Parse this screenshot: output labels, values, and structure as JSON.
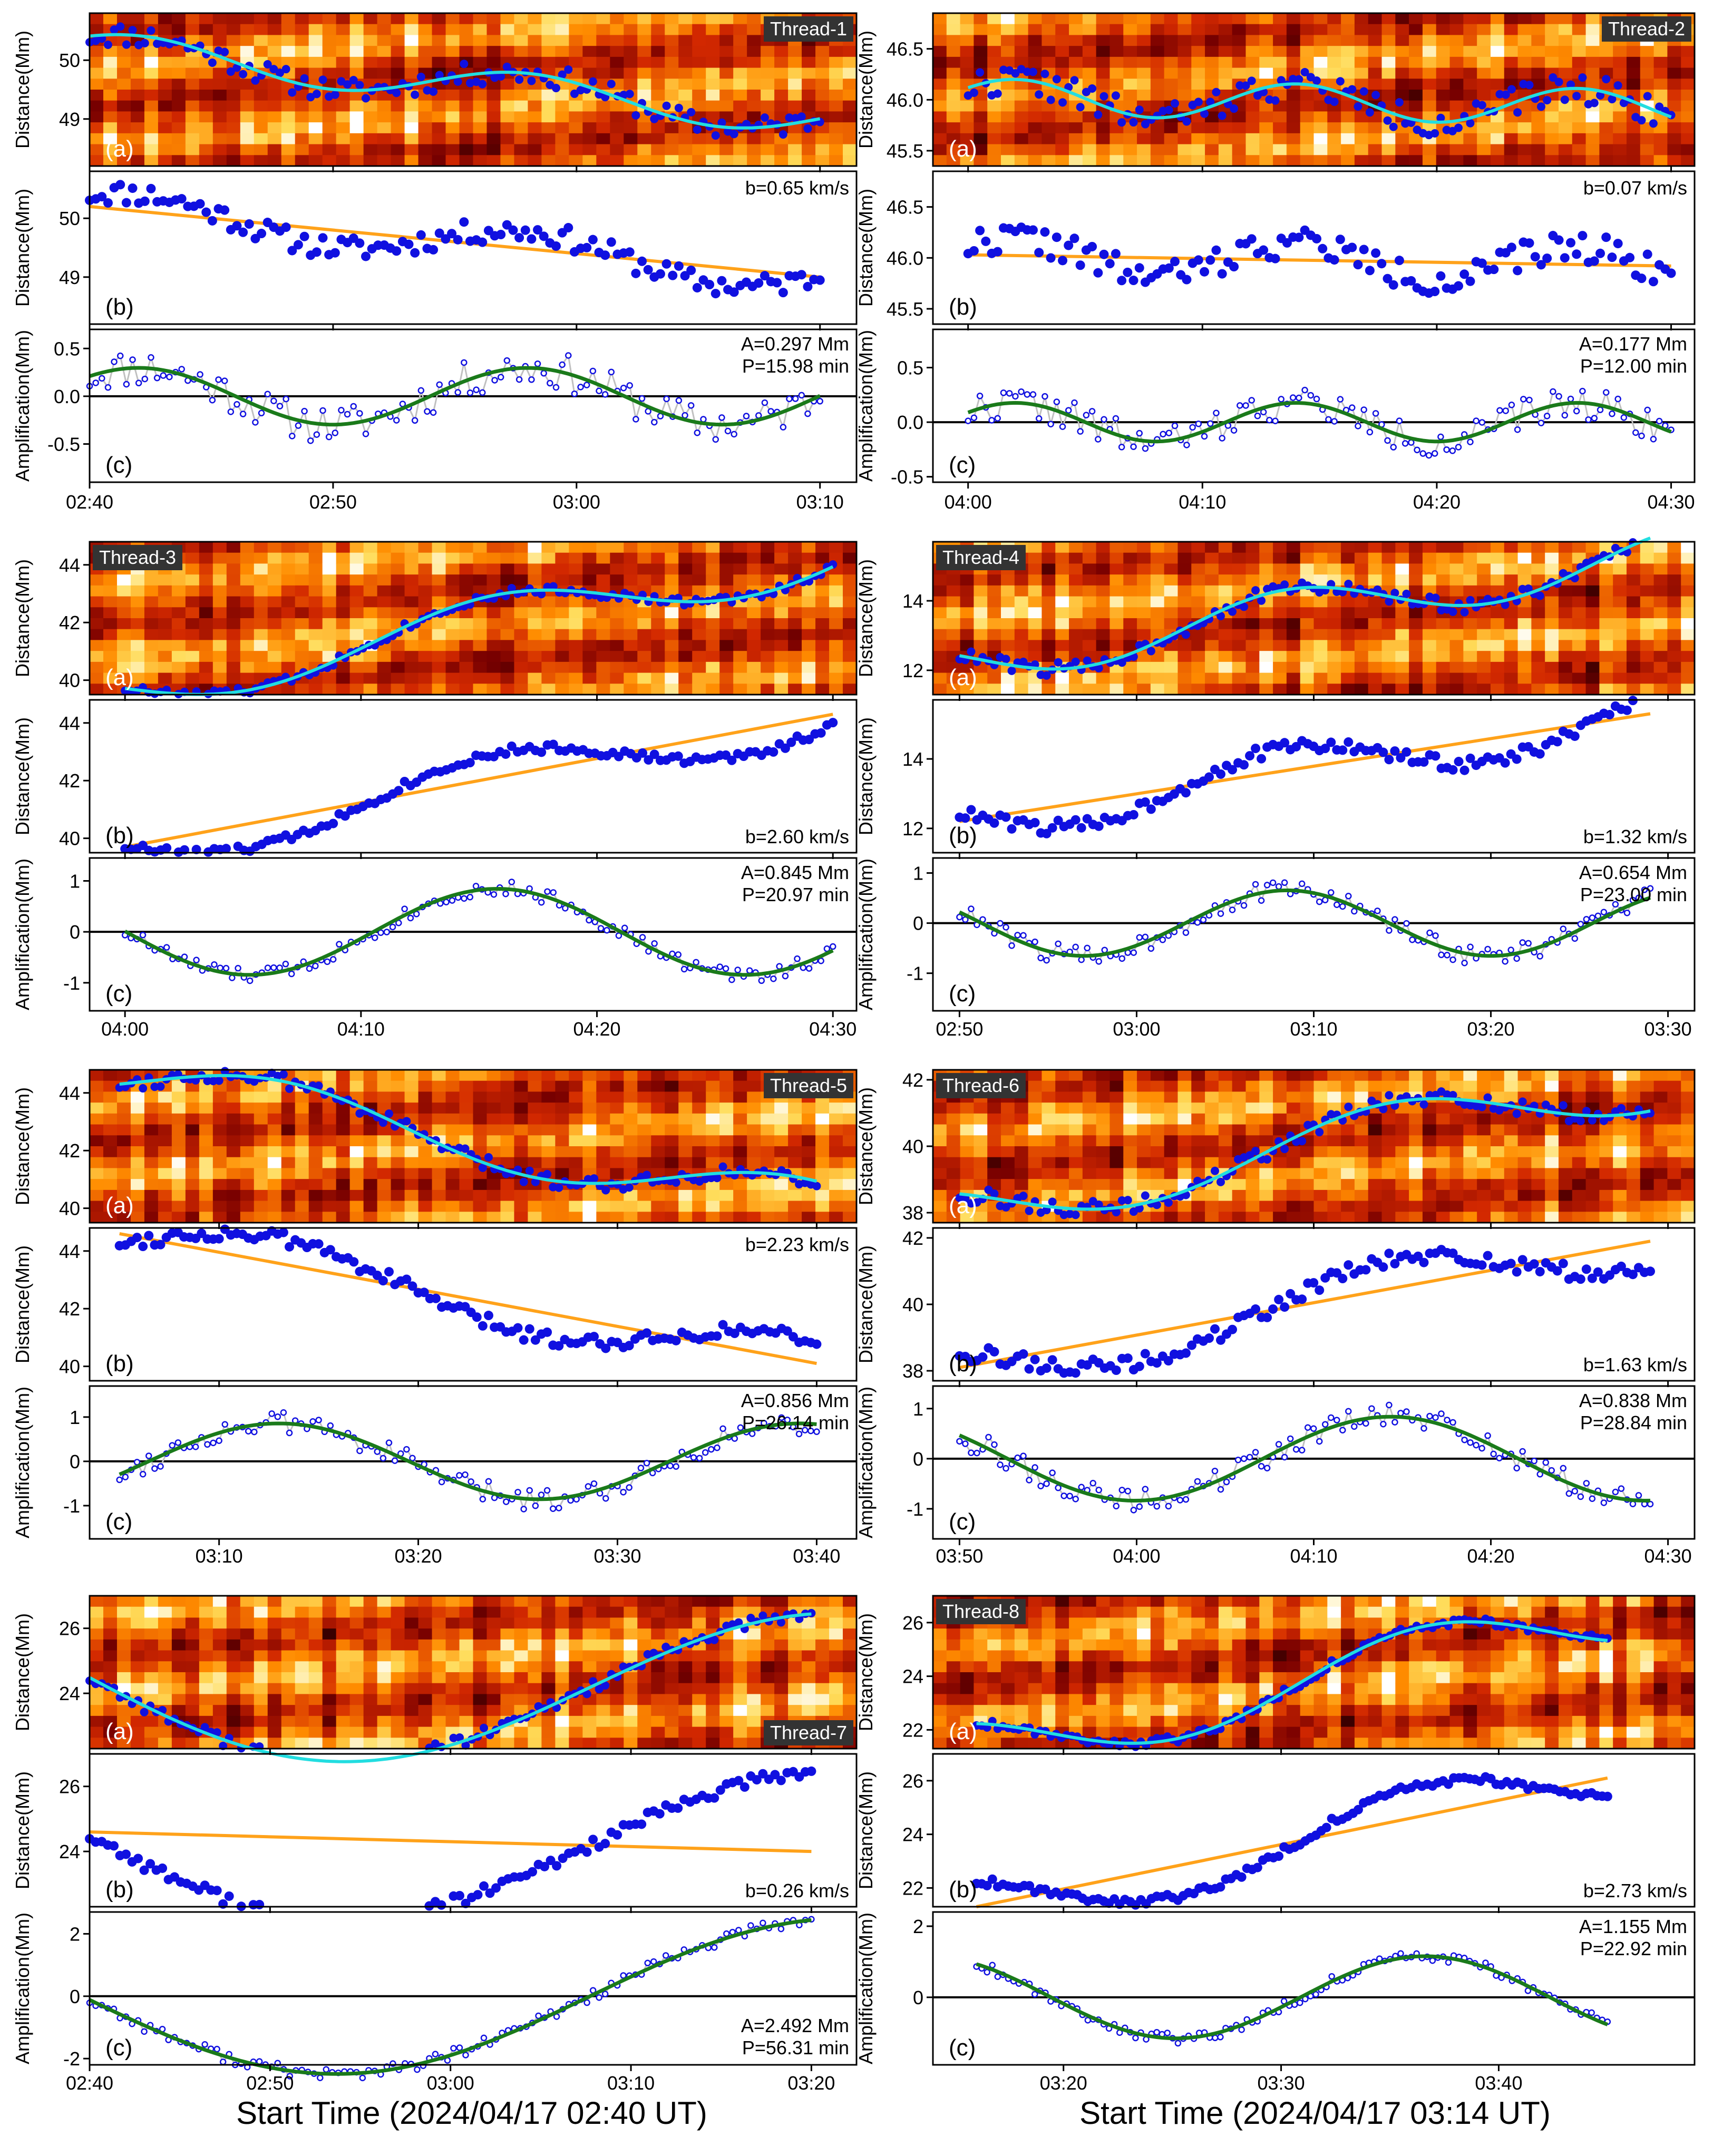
{
  "xtitles": [
    "Start Time (2024/04/17 02:40 UT)",
    "Start Time (2024/04/17 03:14 UT)"
  ],
  "labels": {
    "ylabel_distance": "Distance(Mm)",
    "ylabel_amplification": "Amplification(Mm)",
    "panel_a": "(a)",
    "panel_b": "(b)",
    "panel_c": "(c)"
  },
  "colors": {
    "dots": "#1010e0",
    "sine_fit": "#22dde0",
    "linear_fit": "#ffa21a",
    "residual_fit": "#1a7a1a",
    "residual_line": "#c0c0c0",
    "zero_line": "#000000",
    "thread_label_bg": "#333333"
  },
  "chart_data": [
    {
      "type": "scatter",
      "thread": "Thread-1",
      "thread_label_pos": "top-right",
      "x_start_min": 0,
      "x_end_min": 30,
      "xticks": [
        0,
        10,
        20,
        30
      ],
      "xtick_labels": [
        "02:40",
        "02:50",
        "03:00",
        "03:10"
      ],
      "xlim": [
        0,
        31.5
      ],
      "dist_ylim": [
        48.2,
        50.8
      ],
      "dist_yticks": [
        49,
        50
      ],
      "dist_ytick_labels": [
        "49",
        "50"
      ],
      "linear": {
        "start": 50.2,
        "end": 49.0,
        "label": "b=0.65 km/s",
        "label_pos": "top-right"
      },
      "sine": {
        "A": 0.297,
        "P": 15.98,
        "phase_min": 2.0
      },
      "residual_ylim": [
        -0.9,
        0.7
      ],
      "res_yticks": [
        -0.5,
        0.0,
        0.5
      ],
      "res_ytick_labels": [
        "-0.5",
        "0.0",
        "0.5"
      ],
      "fit_label": [
        "A=0.297 Mm",
        "P=15.98 min"
      ],
      "fit_label_pos": "top-right",
      "noise": 0.2,
      "seed": 11
    },
    {
      "type": "scatter",
      "thread": "Thread-2",
      "thread_label_pos": "top-right",
      "x_start_min": 0,
      "x_end_min": 30,
      "xticks": [
        0,
        10,
        20,
        30
      ],
      "xtick_labels": [
        "04:00",
        "04:10",
        "04:20",
        "04:30"
      ],
      "xlim": [
        -1.5,
        31
      ],
      "dist_ylim": [
        45.35,
        46.85
      ],
      "dist_yticks": [
        45.5,
        46.0,
        46.5
      ],
      "dist_ytick_labels": [
        "45.5",
        "46.0",
        "46.5"
      ],
      "linear": {
        "start": 46.03,
        "end": 45.92,
        "label": "b=0.07 km/s",
        "label_pos": "top-right"
      },
      "sine": {
        "A": 0.177,
        "P": 12.0,
        "phase_min": 2.0
      },
      "residual_ylim": [
        -0.55,
        0.85
      ],
      "res_yticks": [
        -0.5,
        0.0,
        0.5
      ],
      "res_ytick_labels": [
        "-0.5",
        "0.0",
        "0.5"
      ],
      "fit_label": [
        "A=0.177 Mm",
        "P=12.00 min"
      ],
      "fit_label_pos": "top-right",
      "noise": 0.15,
      "seed": 22
    },
    {
      "type": "scatter",
      "thread": "Thread-3",
      "thread_label_pos": "top-left",
      "x_start_min": 0,
      "x_end_min": 30,
      "xticks": [
        0,
        10,
        20,
        30
      ],
      "xtick_labels": [
        "04:00",
        "04:10",
        "04:20",
        "04:30"
      ],
      "xlim": [
        -1.5,
        31
      ],
      "dist_ylim": [
        39.5,
        44.8
      ],
      "dist_yticks": [
        40,
        42,
        44
      ],
      "dist_ytick_labels": [
        "40",
        "42",
        "44"
      ],
      "linear": {
        "start": 39.7,
        "end": 44.3,
        "label": "b=2.60 km/s",
        "label_pos": "bottom-right"
      },
      "sine": {
        "A": 0.845,
        "P": 20.97,
        "phase_min": -5.2
      },
      "residual_ylim": [
        -1.55,
        1.45
      ],
      "res_yticks": [
        -1,
        0,
        1
      ],
      "res_ytick_labels": [
        "-1",
        "0",
        "1"
      ],
      "fit_label": [
        "A=0.845 Mm",
        "P=20.97 min"
      ],
      "fit_label_pos": "top-right",
      "noise": 0.15,
      "seed": 33
    },
    {
      "type": "scatter",
      "thread": "Thread-4",
      "thread_label_pos": "top-left",
      "x_start_min": 0,
      "x_end_min": 39,
      "xticks": [
        0,
        10,
        20,
        30,
        40
      ],
      "xtick_labels": [
        "02:50",
        "03:00",
        "03:10",
        "03:20",
        "03:30"
      ],
      "xlim": [
        -1.5,
        41.5
      ],
      "dist_ylim": [
        11.3,
        15.7
      ],
      "dist_yticks": [
        12,
        14
      ],
      "dist_ytick_labels": [
        "12",
        "14"
      ],
      "linear": {
        "start": 12.2,
        "end": 15.3,
        "label": "b=1.32 km/s",
        "label_pos": "bottom-right"
      },
      "sine": {
        "A": 0.654,
        "P": 23.0,
        "phase_min": -4.5
      },
      "residual_ylim": [
        -1.75,
        1.3
      ],
      "res_yticks": [
        -1,
        0,
        1
      ],
      "res_ytick_labels": [
        "-1",
        "0",
        "1"
      ],
      "fit_label": [
        "A=0.654 Mm",
        "P=23.00 min"
      ],
      "fit_label_pos": "top-right",
      "noise": 0.2,
      "seed": 44
    },
    {
      "type": "scatter",
      "thread": "Thread-5",
      "thread_label_pos": "top-right",
      "x_start_min": 0,
      "x_end_min": 35,
      "xticks": [
        5,
        15,
        25,
        35
      ],
      "xtick_labels": [
        "03:10",
        "03:20",
        "03:30",
        "03:40"
      ],
      "xlim": [
        -1.5,
        37
      ],
      "dist_ylim": [
        39.5,
        44.8
      ],
      "dist_yticks": [
        40,
        42,
        44
      ],
      "dist_ytick_labels": [
        "40",
        "42",
        "44"
      ],
      "linear": {
        "start": 44.6,
        "end": 40.1,
        "label": "b=2.23 km/s",
        "label_pos": "top-right"
      },
      "sine": {
        "A": 0.856,
        "P": 26.14,
        "phase_min": 8.0
      },
      "residual_ylim": [
        -1.75,
        1.7
      ],
      "res_yticks": [
        -1,
        0,
        1
      ],
      "res_ytick_labels": [
        "-1",
        "0",
        "1"
      ],
      "fit_label": [
        "A=0.856 Mm",
        "P=26.14 min"
      ],
      "fit_label_pos": "top-right",
      "noise": 0.25,
      "seed": 55
    },
    {
      "type": "scatter",
      "thread": "Thread-6",
      "thread_label_pos": "top-left",
      "x_start_min": 0,
      "x_end_min": 39,
      "xticks": [
        0,
        10,
        20,
        30,
        40
      ],
      "xtick_labels": [
        "03:50",
        "04:00",
        "04:10",
        "04:20",
        "04:30"
      ],
      "xlim": [
        -1.5,
        41.5
      ],
      "dist_ylim": [
        37.7,
        42.3
      ],
      "dist_yticks": [
        38,
        40,
        42
      ],
      "dist_ytick_labels": [
        "38",
        "40",
        "42"
      ],
      "linear": {
        "start": 38.1,
        "end": 41.9,
        "label": "b=1.63 km/s",
        "label_pos": "bottom-right"
      },
      "sine": {
        "A": 0.838,
        "P": 28.84,
        "phase_min": -4.5
      },
      "residual_ylim": [
        -1.6,
        1.45
      ],
      "res_yticks": [
        -1,
        0,
        1
      ],
      "res_ytick_labels": [
        "-1",
        "0",
        "1"
      ],
      "fit_label": [
        "A=0.838 Mm",
        "P=28.84 min"
      ],
      "fit_label_pos": "top-right",
      "noise": 0.25,
      "seed": 66
    },
    {
      "type": "scatter",
      "thread": "Thread-7",
      "thread_label_pos": "bottom-right",
      "x_start_min": 0,
      "x_end_min": 40,
      "xticks": [
        0,
        10,
        20,
        30,
        40
      ],
      "xtick_labels": [
        "02:40",
        "02:50",
        "03:00",
        "03:10",
        "03:20"
      ],
      "xlim": [
        0,
        42.5
      ],
      "dist_ylim": [
        22.3,
        27.0
      ],
      "dist_yticks": [
        24,
        26
      ],
      "dist_ytick_labels": [
        "24",
        "26"
      ],
      "linear": {
        "start": 24.6,
        "end": 24.0,
        "label": "b=0.26 km/s",
        "label_pos": "bottom-right"
      },
      "sine": {
        "A": 2.492,
        "P": 56.31,
        "phase_min": -14.5
      },
      "residual_ylim": [
        -2.2,
        2.7
      ],
      "res_yticks": [
        -2,
        0,
        2
      ],
      "res_ytick_labels": [
        "-2",
        "0",
        "2"
      ],
      "fit_label": [
        "A=2.492 Mm",
        "P=56.31 min"
      ],
      "fit_label_pos": "bottom-right",
      "noise": 0.2,
      "seed": 77
    },
    {
      "type": "scatter",
      "thread": "Thread-8",
      "thread_label_pos": "top-left",
      "x_start_min": 0,
      "x_end_min": 29,
      "xticks": [
        4,
        14,
        24
      ],
      "xtick_labels": [
        "03:20",
        "03:30",
        "03:40"
      ],
      "xlim": [
        -2,
        33
      ],
      "dist_ylim": [
        21.3,
        27.0
      ],
      "dist_yticks": [
        22,
        24,
        26
      ],
      "dist_ytick_labels": [
        "22",
        "24",
        "26"
      ],
      "linear": {
        "start": 21.3,
        "end": 26.1,
        "label": "b=2.73 km/s",
        "label_pos": "bottom-right"
      },
      "sine": {
        "A": 1.155,
        "P": 22.92,
        "phase_min": -2.3
      },
      "residual_ylim": [
        -1.9,
        2.4
      ],
      "res_yticks": [
        0,
        2
      ],
      "res_ytick_labels": [
        "0",
        "2"
      ],
      "fit_label": [
        "A=1.155 Mm",
        "P=22.92 min"
      ],
      "fit_label_pos": "top-right",
      "noise": 0.15,
      "seed": 88
    }
  ]
}
